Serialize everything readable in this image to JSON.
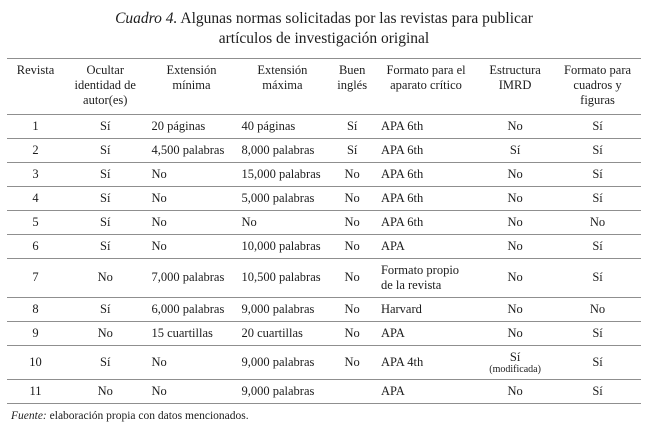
{
  "title": {
    "label": "Cuadro 4.",
    "text": " Algunas normas solicitadas por las revistas para publicar artículos de investigación original"
  },
  "table": {
    "headers": [
      "Revista",
      "Ocultar identidad de autor(es)",
      "Extensión mínima",
      "Extensión máxima",
      "Buen inglés",
      "Formato para el aparato crítico",
      "Estructura IMRD",
      "Formato para cuadros y figuras"
    ],
    "rows": [
      [
        "1",
        "Sí",
        "20 páginas",
        "40 páginas",
        "Sí",
        "APA 6th",
        "No",
        "Sí"
      ],
      [
        "2",
        "Sí",
        "4,500 palabras",
        "8,000 palabras",
        "Sí",
        "APA 6th",
        "Sí",
        "Sí"
      ],
      [
        "3",
        "Sí",
        "No",
        "15,000 palabras",
        "No",
        "APA 6th",
        "No",
        "Sí"
      ],
      [
        "4",
        "Sí",
        "No",
        "5,000 palabras",
        "No",
        "APA 6th",
        "No",
        "Sí"
      ],
      [
        "5",
        "Sí",
        "No",
        "No",
        "No",
        "APA 6th",
        "No",
        "No"
      ],
      [
        "6",
        "Sí",
        "No",
        "10,000 palabras",
        "No",
        "APA",
        "No",
        "Sí"
      ],
      [
        "7",
        "No",
        "7,000 palabras",
        "10,500 palabras",
        "No",
        "Formato propio de la revista",
        "No",
        "Sí"
      ],
      [
        "8",
        "Sí",
        "6,000 palabras",
        "9,000 palabras",
        "No",
        "Harvard",
        "No",
        "No"
      ],
      [
        "9",
        "No",
        "15 cuartillas",
        "20 cuartillas",
        "No",
        "APA",
        "No",
        "Sí"
      ],
      [
        "10",
        "Sí",
        "No",
        "9,000 palabras",
        "No",
        "APA 4th",
        "Sí\n(modificada)",
        "Sí"
      ],
      [
        "11",
        "No",
        "No",
        "9,000 palabras",
        "",
        "APA",
        "No",
        "Sí"
      ]
    ]
  },
  "footer": {
    "label": "Fuente:",
    "text": " elaboración propia con datos mencionados."
  }
}
